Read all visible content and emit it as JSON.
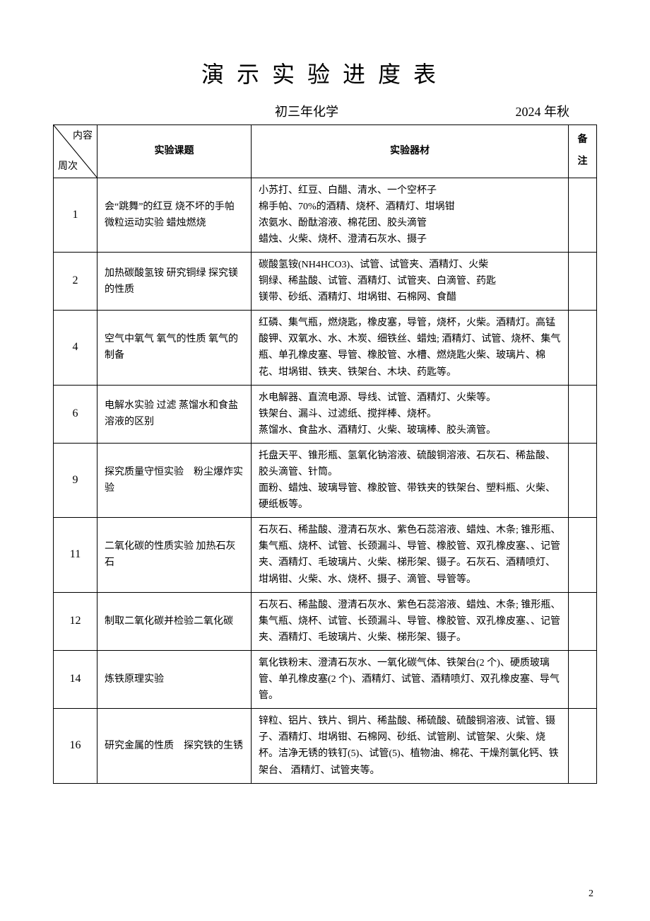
{
  "title": "演示实验进度表",
  "subtitle_left": "初三年化学",
  "subtitle_right": "2024 年秋",
  "headers": {
    "diag_top": "内容",
    "diag_bottom": "周次",
    "topic": "实验课题",
    "equipment": "实验器材",
    "note": "备注"
  },
  "rows": [
    {
      "week": "1",
      "topic": "会“跳舞”的红豆 烧不坏的手帕微粒运动实验 蜡烛燃烧",
      "equipment": "小苏打、红豆、白醋、清水、一个空杯子\n棉手帕、70%的酒精、烧杯、酒精灯、坩埚钳\n浓氨水、酚酞溶液、棉花团、胶头滴管\n蜡烛、火柴、烧杯、澄清石灰水、摄子",
      "note": ""
    },
    {
      "week": "2",
      "topic": "加热碳酸氢铵 研究铜绿 探究镁的性质",
      "equipment": "碳酸氢铵(NH4HCO3)、试管、试管夹、酒精灯、火柴\n铜绿、稀盐酸、试管、酒精灯、试管夹、白滴管、药匙\n镁带、砂纸、酒精灯、坩埚钳、石棉网、食醋",
      "note": ""
    },
    {
      "week": "4",
      "topic": "空气中氧气 氧气的性质 氧气的制备",
      "equipment": "红磷、集气瓶，燃烧匙，橡皮塞，导管，烧杯，火柴。酒精灯。高锰酸钾、双氧水、水、木炭、细铁丝、蜡烛; 酒精灯、试管、烧杯、集气瓶、单孔橡皮塞、导管、橡胶管、水槽、燃烧匙火柴、玻璃片、棉花、坩埚钳、铁夹、铁架台、木块、药匙等。",
      "note": ""
    },
    {
      "week": "6",
      "topic": "电解水实验 过滤 蒸馏水和食盐溶液的区别",
      "equipment": "水电解器、直流电源、导线、试管、酒精灯、火柴等。\n铁架台、漏斗、过滤纸、搅拌棒、烧杯。\n蒸馏水、食盐水、酒精灯、火柴、玻璃棒、胶头滴管。",
      "note": ""
    },
    {
      "week": "9",
      "topic": "探究质量守恒实验　粉尘爆炸实验",
      "equipment": "托盘天平、锥形瓶、氢氧化钠溶液、硫酸铜溶液、石灰石、稀盐酸、胶头滴管、针筒。\n面粉、蜡烛、玻璃导管、橡胶管、带铁夹的铁架台、塑料瓶、火柴、硬纸板等。",
      "note": ""
    },
    {
      "week": "11",
      "topic": "二氧化碳的性质实验 加热石灰石",
      "equipment": "石灰石、稀盐酸、澄清石灰水、紫色石蕊溶液、蜡烛、木条; 锥形瓶、集气瓶、烧杯、试管、长颈漏斗、导管、橡胶管、双孔橡皮塞、、记管夹、酒精灯、毛玻璃片、火柴、梯形架、镊子。石灰石、酒精喷灯、坩埚钳、火柴、水、烧杯、摄子、滴管、导管等。",
      "note": ""
    },
    {
      "week": "12",
      "topic": "制取二氧化碳并检验二氧化碳",
      "equipment": "石灰石、稀盐酸、澄清石灰水、紫色石蕊溶液、蜡烛、木条; 锥形瓶、集气瓶、烧杯、试管、长颈漏斗、导管、橡胶管、双孔橡皮塞、、记管夹、酒精灯、毛玻璃片、火柴、梯形架、镊子。",
      "note": ""
    },
    {
      "week": "14",
      "topic": "炼铁原理实验",
      "equipment": "氧化铁粉末、澄清石灰水、一氧化碳气体、铁架台(2 个)、硬质玻璃管、单孔橡皮塞(2 个)、酒精灯、试管、酒精喷灯、双孔橡皮塞、导气管。",
      "note": ""
    },
    {
      "week": "16",
      "topic": "研究金属的性质　探究铁的生锈",
      "equipment": "锌粒、铝片、铁片、铜片、稀盐酸、稀硫酸、硫酸铜溶液、试管、镊子、酒精灯、坩埚钳、石棉网、砂纸、试管刷、试管架、火柴、烧杯。洁净无锈的铁钉(5)、试管(5)、植物油、棉花、干燥剂氯化钙、铁架台、 酒精灯、试管夹等。",
      "note": ""
    }
  ],
  "page_number": "2",
  "styling": {
    "background_color": "#ffffff",
    "border_color": "#000000",
    "title_fontsize": 32,
    "title_letter_spacing": 18,
    "body_fontsize": 14,
    "subtitle_fontsize": 18,
    "font_family": "SimSun",
    "col_widths": {
      "week": 62,
      "topic": 218,
      "note": 40
    }
  }
}
